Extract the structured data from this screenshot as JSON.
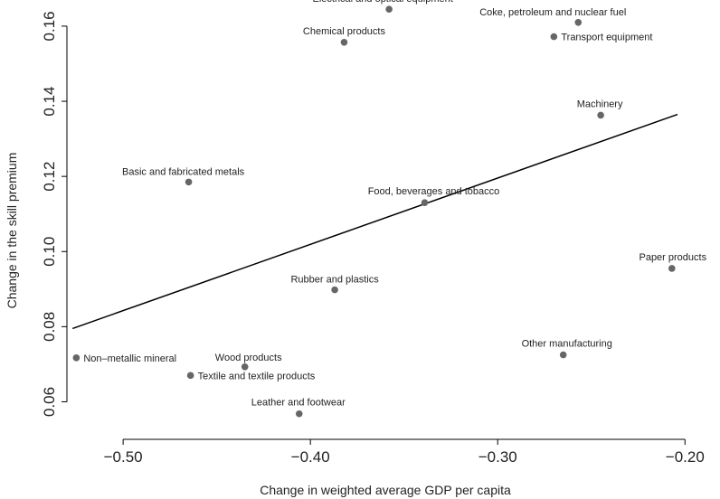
{
  "chart_data": {
    "type": "scatter",
    "title": "",
    "xlabel": "Change in weighted average GDP per capita",
    "ylabel": "Change in the skill premium",
    "xlim": [
      -0.53,
      -0.19
    ],
    "ylim": [
      0.05,
      0.166
    ],
    "x_ticks": [
      -0.5,
      -0.4,
      -0.3,
      -0.2
    ],
    "x_tick_labels": [
      "−0.50",
      "−0.40",
      "−0.30",
      "−0.20"
    ],
    "y_ticks": [
      0.06,
      0.08,
      0.1,
      0.12,
      0.14,
      0.16
    ],
    "y_tick_labels": [
      "0.06",
      "0.08",
      "0.10",
      "0.12",
      "0.14",
      "0.16"
    ],
    "grid": false,
    "points": [
      {
        "label": "Electrical and optical equipment",
        "x": -0.358,
        "y": 0.1645
      },
      {
        "label": "Coke, petroleum and nuclear fuel",
        "x": -0.257,
        "y": 0.161
      },
      {
        "label": "Transport equipment",
        "x": -0.27,
        "y": 0.1572
      },
      {
        "label": "Chemical products",
        "x": -0.382,
        "y": 0.1557
      },
      {
        "label": "Machinery",
        "x": -0.245,
        "y": 0.1363
      },
      {
        "label": "Basic and fabricated metals",
        "x": -0.465,
        "y": 0.1185
      },
      {
        "label": "Food, beverages and tobacco",
        "x": -0.339,
        "y": 0.113
      },
      {
        "label": "Paper products",
        "x": -0.207,
        "y": 0.0955
      },
      {
        "label": "Rubber and plastics",
        "x": -0.387,
        "y": 0.0898
      },
      {
        "label": "Other manufacturing",
        "x": -0.265,
        "y": 0.0725
      },
      {
        "label": "Non–metallic mineral",
        "x": -0.525,
        "y": 0.0717
      },
      {
        "label": "Wood products",
        "x": -0.435,
        "y": 0.0693
      },
      {
        "label": "Textile and textile products",
        "x": -0.464,
        "y": 0.067
      },
      {
        "label": "Leather and footwear",
        "x": -0.406,
        "y": 0.0568
      }
    ],
    "fit_line": {
      "x": [
        -0.527,
        -0.204
      ],
      "y": [
        0.0795,
        0.1365
      ]
    },
    "colors": {
      "point": "#666666",
      "line": "#000000",
      "axis": "#000000"
    }
  }
}
